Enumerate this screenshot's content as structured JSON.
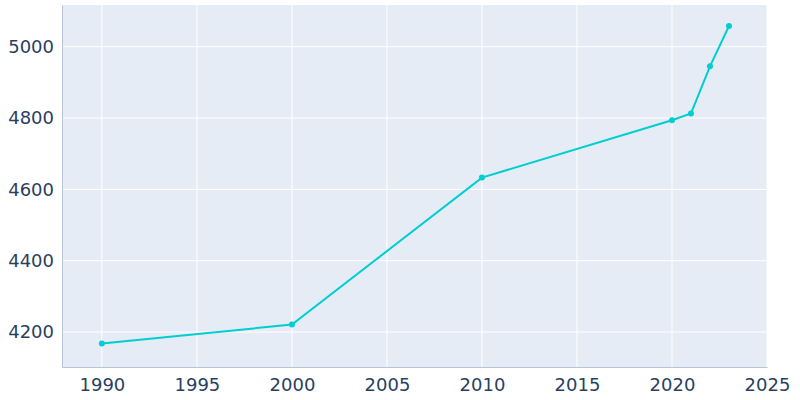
{
  "chart_data": {
    "type": "line",
    "x": [
      1990,
      2000,
      2010,
      2020,
      2021,
      2022,
      2023
    ],
    "values": [
      4168,
      4221,
      4633,
      4794,
      4813,
      4945,
      5058
    ],
    "color": "#00ced1",
    "marker": "circle",
    "xlim": [
      1987.9,
      2025
    ],
    "xticks": [
      1990,
      1995,
      2000,
      2005,
      2010,
      2015,
      2020,
      2025
    ],
    "ylim": [
      4102,
      5117
    ],
    "yticks": [
      4200,
      4400,
      4600,
      4800,
      5000
    ],
    "grid": true
  }
}
